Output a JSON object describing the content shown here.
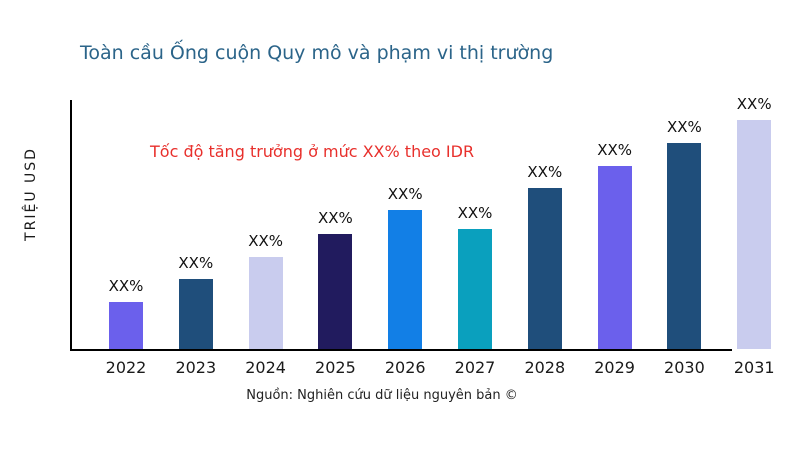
{
  "header": {
    "title": "Toàn cầu Ống cuộn Quy mô và phạm vi thị trường"
  },
  "chart_data": {
    "type": "bar",
    "title": "Toàn cầu Ống cuộn Quy mô và phạm vi thị trường",
    "xlabel": "",
    "ylabel": "TRIỆU USD",
    "categories": [
      "2022",
      "2023",
      "2024",
      "2025",
      "2026",
      "2027",
      "2028",
      "2029",
      "2030",
      "2031"
    ],
    "values": [
      20.5,
      30.6,
      40.2,
      50.2,
      60.7,
      52.4,
      70.3,
      79.9,
      90.0,
      100.0
    ],
    "values_note": "Relative bar heights (tallest bar 2031 = 100); no numeric axis scale is shown — all data labels are placeholder 'XX%'",
    "value_labels": [
      "XX%",
      "XX%",
      "XX%",
      "XX%",
      "XX%",
      "XX%",
      "XX%",
      "XX%",
      "XX%",
      "XX%"
    ],
    "bar_colors": [
      "#6B60EC",
      "#1F4E7B",
      "#C9CCEE",
      "#211B5E",
      "#127FE6",
      "#0AA0BE",
      "#1F4E7B",
      "#6B60EC",
      "#1F4E7B",
      "#C9CCEE"
    ],
    "annotation": "Tốc độ tăng trưởng ở mức XX% theo IDR",
    "annotation_color": "#E8302C",
    "title_color": "#2B6489",
    "axis_color": "#000000",
    "grid": false,
    "legend": false,
    "ylim": null
  },
  "footer": {
    "source": "Nguồn: Nghiên cứu dữ liệu nguyên bản ©"
  }
}
